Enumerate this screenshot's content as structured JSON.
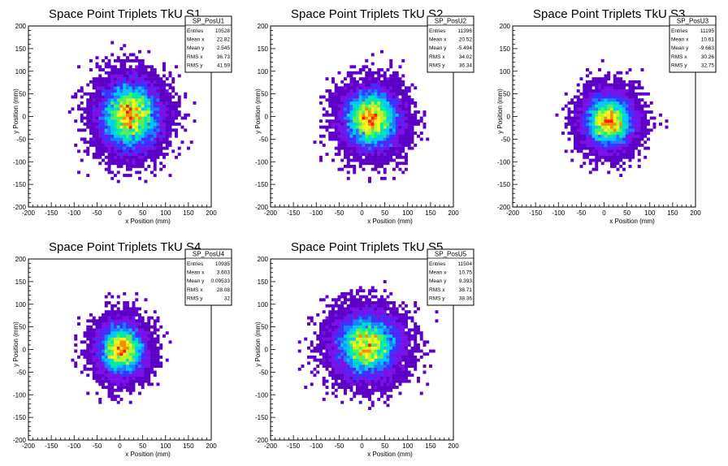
{
  "canvas": {
    "background": "#ffffff"
  },
  "palette": [
    "#5c00c8",
    "#7a10e8",
    "#3a30ff",
    "#1d7dff",
    "#00c7ff",
    "#00e9a8",
    "#53f05a",
    "#b8f52b",
    "#fff21c",
    "#ff8a00",
    "#ff1a00"
  ],
  "chart_data": [
    {
      "type": "heatmap",
      "title": "Space Point Triplets TkU S1",
      "xlabel": "x Position (mm)",
      "ylabel": "y Position (mm)",
      "xlim": [
        -200,
        200
      ],
      "ylim": [
        -200,
        200
      ],
      "xticks": [
        "-200",
        "-150",
        "-100",
        "-50",
        "0",
        "50",
        "100",
        "150",
        "200"
      ],
      "yticks": [
        "200",
        "150",
        "100",
        "50",
        "0",
        "-50",
        "-100",
        "-150",
        "-200"
      ],
      "stats": {
        "name": "SP_PosU1",
        "rows": [
          [
            "Entries",
            "10528"
          ],
          [
            "Mean x",
            "22.82"
          ],
          [
            "Mean y",
            "2.545"
          ],
          [
            "RMS x",
            "36.73"
          ],
          [
            "RMS y",
            "41.59"
          ]
        ]
      },
      "entries": 10528,
      "mean_x": 22.82,
      "mean_y": 2.545,
      "rms_x": 36.73,
      "rms_y": 41.59
    },
    {
      "type": "heatmap",
      "title": "Space Point Triplets TkU S2",
      "xlabel": "x Position (mm)",
      "ylabel": "y Position (mm)",
      "xlim": [
        -200,
        200
      ],
      "ylim": [
        -200,
        200
      ],
      "xticks": [
        "-200",
        "-150",
        "-100",
        "-50",
        "0",
        "50",
        "100",
        "150",
        "200"
      ],
      "yticks": [
        "200",
        "150",
        "100",
        "50",
        "0",
        "-50",
        "-100",
        "-150",
        "-200"
      ],
      "stats": {
        "name": "SP_PosU2",
        "rows": [
          [
            "Entries",
            "11396"
          ],
          [
            "Mean x",
            "20.52"
          ],
          [
            "Mean y",
            "-5.494"
          ],
          [
            "RMS x",
            "34.02"
          ],
          [
            "RMS y",
            "36.34"
          ]
        ]
      },
      "entries": 11396,
      "mean_x": 20.52,
      "mean_y": -5.494,
      "rms_x": 34.02,
      "rms_y": 36.34
    },
    {
      "type": "heatmap",
      "title": "Space Point Triplets TkU S3",
      "xlabel": "x Position (mm)",
      "ylabel": "y Position (mm)",
      "xlim": [
        -200,
        200
      ],
      "ylim": [
        -200,
        200
      ],
      "xticks": [
        "-200",
        "-150",
        "-100",
        "-50",
        "0",
        "50",
        "100",
        "150",
        "200"
      ],
      "yticks": [
        "200",
        "150",
        "100",
        "50",
        "0",
        "-50",
        "-100",
        "-150",
        "-200"
      ],
      "stats": {
        "name": "SP_PosU3",
        "rows": [
          [
            "Entries",
            "11195"
          ],
          [
            "Mean x",
            "10.61"
          ],
          [
            "Mean y",
            "-9.663"
          ],
          [
            "RMS x",
            "30.26"
          ],
          [
            "RMS y",
            "32.75"
          ]
        ]
      },
      "entries": 11195,
      "mean_x": 10.61,
      "mean_y": -9.663,
      "rms_x": 30.26,
      "rms_y": 32.75
    },
    {
      "type": "heatmap",
      "title": "Space Point Triplets TkU S4",
      "xlabel": "x Position (mm)",
      "ylabel": "y Position (mm)",
      "xlim": [
        -200,
        200
      ],
      "ylim": [
        -200,
        200
      ],
      "xticks": [
        "-200",
        "-150",
        "-100",
        "-50",
        "0",
        "50",
        "100",
        "150",
        "200"
      ],
      "yticks": [
        "200",
        "150",
        "100",
        "50",
        "0",
        "-50",
        "-100",
        "-150",
        "-200"
      ],
      "stats": {
        "name": "SP_PosU4",
        "rows": [
          [
            "Entries",
            "10935"
          ],
          [
            "Mean x",
            "3.603"
          ],
          [
            "Mean y",
            "0.09533"
          ],
          [
            "RMS x",
            "28.08"
          ],
          [
            "RMS y",
            "32"
          ]
        ]
      },
      "entries": 10935,
      "mean_x": 3.603,
      "mean_y": 0.09533,
      "rms_x": 28.08,
      "rms_y": 32
    },
    {
      "type": "heatmap",
      "title": "Space Point Triplets TkU S5",
      "xlabel": "x Position (mm)",
      "ylabel": "y Position (mm)",
      "xlim": [
        -200,
        200
      ],
      "ylim": [
        -200,
        200
      ],
      "xticks": [
        "-200",
        "-150",
        "-100",
        "-50",
        "0",
        "50",
        "100",
        "150",
        "200"
      ],
      "yticks": [
        "200",
        "150",
        "100",
        "50",
        "0",
        "-50",
        "-100",
        "-150",
        "-200"
      ],
      "stats": {
        "name": "SP_PosU5",
        "rows": [
          [
            "Entries",
            "11504"
          ],
          [
            "Mean x",
            "10.75"
          ],
          [
            "Mean y",
            "9.393"
          ],
          [
            "RMS x",
            "38.71"
          ],
          [
            "RMS y",
            "38.36"
          ]
        ]
      },
      "entries": 11504,
      "mean_x": 10.75,
      "mean_y": 9.393,
      "rms_x": 38.71,
      "rms_y": 38.36
    }
  ]
}
